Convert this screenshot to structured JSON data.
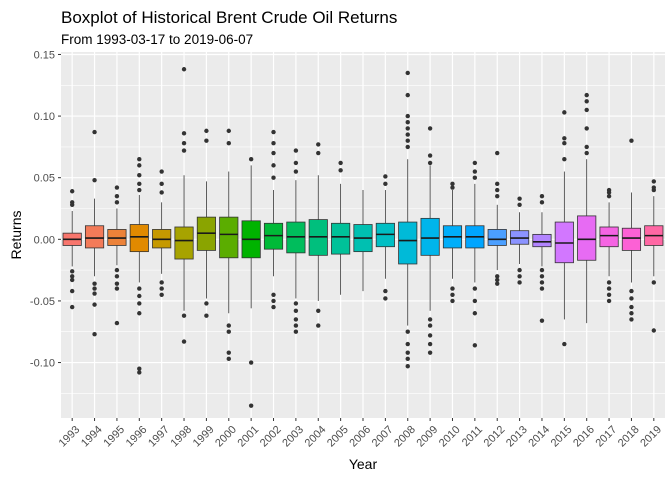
{
  "chart_data": {
    "type": "boxplot",
    "title": "Boxplot of Historical Brent Crude Oil Returns",
    "subtitle": "From 1993-03-17 to 2019-06-07",
    "xlabel": "Year",
    "ylabel": "Returns",
    "ylim": [
      -0.145,
      0.152
    ],
    "yticks": [
      -0.1,
      -0.05,
      0.0,
      0.05,
      0.1,
      0.15
    ],
    "ytick_labels": [
      "-0.10",
      "-0.05",
      "0.00",
      "0.05",
      "0.10",
      "0.15"
    ],
    "grid": true,
    "legend": "none",
    "categories": [
      "1993",
      "1994",
      "1995",
      "1996",
      "1997",
      "1998",
      "1999",
      "2000",
      "2001",
      "2002",
      "2003",
      "2004",
      "2005",
      "2006",
      "2007",
      "2008",
      "2009",
      "2010",
      "2011",
      "2012",
      "2013",
      "2014",
      "2015",
      "2016",
      "2017",
      "2018",
      "2019"
    ],
    "boxes": [
      {
        "q1": -0.005,
        "median": 0.0,
        "q3": 0.005,
        "whisker_low": -0.022,
        "whisker_high": 0.023,
        "outliers": [
          0.039,
          0.03,
          0.028,
          -0.026,
          -0.03,
          -0.033,
          -0.042,
          -0.055
        ],
        "color": "#F8766D"
      },
      {
        "q1": -0.007,
        "median": 0.001,
        "q3": 0.011,
        "whisker_low": -0.03,
        "whisker_high": 0.033,
        "outliers": [
          0.087,
          0.048,
          -0.036,
          -0.04,
          -0.044,
          -0.053,
          -0.077
        ],
        "color": "#F37B59"
      },
      {
        "q1": -0.005,
        "median": 0.001,
        "q3": 0.008,
        "whisker_low": -0.021,
        "whisker_high": 0.025,
        "outliers": [
          0.042,
          0.035,
          0.03,
          -0.025,
          -0.03,
          -0.036,
          -0.04,
          -0.068
        ],
        "color": "#EC8239"
      },
      {
        "q1": -0.01,
        "median": 0.002,
        "q3": 0.012,
        "whisker_low": -0.035,
        "whisker_high": 0.036,
        "outliers": [
          0.065,
          0.06,
          0.052,
          0.045,
          0.04,
          -0.04,
          -0.046,
          -0.052,
          -0.06,
          -0.105,
          -0.108
        ],
        "color": "#E18A00"
      },
      {
        "q1": -0.007,
        "median": 0.0,
        "q3": 0.008,
        "whisker_low": -0.028,
        "whisker_high": 0.03,
        "outliers": [
          0.055,
          0.045,
          0.038,
          -0.035,
          -0.04,
          -0.045
        ],
        "color": "#C59900"
      },
      {
        "q1": -0.016,
        "median": -0.001,
        "q3": 0.01,
        "whisker_low": -0.058,
        "whisker_high": 0.052,
        "outliers": [
          0.138,
          0.086,
          0.078,
          0.072,
          -0.062,
          -0.083
        ],
        "color": "#A7A300"
      },
      {
        "q1": -0.009,
        "median": 0.005,
        "q3": 0.018,
        "whisker_low": -0.048,
        "whisker_high": 0.047,
        "outliers": [
          0.088,
          0.08,
          -0.052,
          -0.062
        ],
        "color": "#8AA400"
      },
      {
        "q1": -0.015,
        "median": 0.004,
        "q3": 0.018,
        "whisker_low": -0.06,
        "whisker_high": 0.055,
        "outliers": [
          0.088,
          0.078,
          -0.07,
          -0.075,
          -0.092,
          -0.097
        ],
        "color": "#5BAD00"
      },
      {
        "q1": -0.015,
        "median": 0.0,
        "q3": 0.015,
        "whisker_low": -0.056,
        "whisker_high": 0.06,
        "outliers": [
          0.065,
          -0.1,
          -0.135
        ],
        "color": "#00B300"
      },
      {
        "q1": -0.008,
        "median": 0.003,
        "q3": 0.013,
        "whisker_low": -0.03,
        "whisker_high": 0.04,
        "outliers": [
          0.087,
          0.078,
          0.07,
          0.06,
          0.05,
          -0.045,
          -0.05,
          -0.055
        ],
        "color": "#00BA38"
      },
      {
        "q1": -0.011,
        "median": 0.002,
        "q3": 0.014,
        "whisker_low": -0.048,
        "whisker_high": 0.048,
        "outliers": [
          0.072,
          0.062,
          0.055,
          -0.052,
          -0.058,
          -0.065,
          -0.07,
          -0.075
        ],
        "color": "#00BD5C"
      },
      {
        "q1": -0.013,
        "median": 0.002,
        "q3": 0.016,
        "whisker_low": -0.05,
        "whisker_high": 0.052,
        "outliers": [
          0.077,
          0.07,
          -0.058,
          -0.07
        ],
        "color": "#00BF7D"
      },
      {
        "q1": -0.012,
        "median": 0.002,
        "q3": 0.013,
        "whisker_low": -0.045,
        "whisker_high": 0.045,
        "outliers": [
          0.062,
          0.056
        ],
        "color": "#00C199"
      },
      {
        "q1": -0.01,
        "median": 0.001,
        "q3": 0.012,
        "whisker_low": -0.042,
        "whisker_high": 0.04,
        "outliers": [],
        "color": "#00C0B1"
      },
      {
        "q1": -0.006,
        "median": 0.004,
        "q3": 0.013,
        "whisker_low": -0.032,
        "whisker_high": 0.04,
        "outliers": [
          0.051,
          0.045,
          -0.042,
          -0.048
        ],
        "color": "#00BFC4"
      },
      {
        "q1": -0.02,
        "median": -0.001,
        "q3": 0.014,
        "whisker_low": -0.07,
        "whisker_high": 0.065,
        "outliers": [
          0.135,
          0.117,
          0.1,
          0.095,
          0.09,
          0.085,
          0.08,
          0.075,
          -0.075,
          -0.085,
          -0.092,
          -0.097,
          -0.103
        ],
        "color": "#00BAD8"
      },
      {
        "q1": -0.013,
        "median": 0.001,
        "q3": 0.017,
        "whisker_low": -0.058,
        "whisker_high": 0.06,
        "outliers": [
          0.09,
          0.068,
          0.062,
          -0.065,
          -0.07,
          -0.078,
          -0.085,
          -0.092
        ],
        "color": "#00B5EB"
      },
      {
        "q1": -0.007,
        "median": 0.002,
        "q3": 0.011,
        "whisker_low": -0.032,
        "whisker_high": 0.04,
        "outliers": [
          0.045,
          0.042,
          -0.04,
          -0.045,
          -0.05
        ],
        "color": "#00AEFA"
      },
      {
        "q1": -0.007,
        "median": 0.002,
        "q3": 0.011,
        "whisker_low": -0.035,
        "whisker_high": 0.045,
        "outliers": [
          0.062,
          0.055,
          0.05,
          -0.04,
          -0.05,
          -0.06,
          -0.086
        ],
        "color": "#00A5FF"
      },
      {
        "q1": -0.005,
        "median": 0.0,
        "q3": 0.008,
        "whisker_low": -0.025,
        "whisker_high": 0.028,
        "outliers": [
          0.07,
          0.045,
          0.04,
          0.035,
          -0.03,
          -0.033,
          -0.036
        ],
        "color": "#4B9FFF"
      },
      {
        "q1": -0.004,
        "median": 0.001,
        "q3": 0.007,
        "whisker_low": -0.02,
        "whisker_high": 0.022,
        "outliers": [
          0.033,
          0.028,
          -0.025,
          -0.03,
          -0.035
        ],
        "color": "#8B93FF"
      },
      {
        "q1": -0.006,
        "median": -0.002,
        "q3": 0.004,
        "whisker_low": -0.022,
        "whisker_high": 0.022,
        "outliers": [
          0.035,
          0.03,
          -0.025,
          -0.03,
          -0.035,
          -0.04,
          -0.066
        ],
        "color": "#B284FF"
      },
      {
        "q1": -0.019,
        "median": -0.003,
        "q3": 0.014,
        "whisker_low": -0.065,
        "whisker_high": 0.055,
        "outliers": [
          0.103,
          0.082,
          0.078,
          0.065,
          -0.085
        ],
        "color": "#D277FF"
      },
      {
        "q1": -0.017,
        "median": 0.0,
        "q3": 0.019,
        "whisker_low": -0.068,
        "whisker_high": 0.065,
        "outliers": [
          0.117,
          0.112,
          0.105,
          0.09,
          0.075,
          0.07
        ],
        "color": "#E76BF3"
      },
      {
        "q1": -0.006,
        "median": 0.003,
        "q3": 0.01,
        "whisker_low": -0.03,
        "whisker_high": 0.03,
        "outliers": [
          0.04,
          0.038,
          0.035,
          -0.035,
          -0.04,
          -0.045,
          -0.05
        ],
        "color": "#F564E3"
      },
      {
        "q1": -0.009,
        "median": 0.001,
        "q3": 0.009,
        "whisker_low": -0.035,
        "whisker_high": 0.038,
        "outliers": [
          0.08,
          -0.042,
          -0.048,
          -0.055,
          -0.06,
          -0.065
        ],
        "color": "#FC61D5"
      },
      {
        "q1": -0.005,
        "median": 0.003,
        "q3": 0.011,
        "whisker_low": -0.03,
        "whisker_high": 0.035,
        "outliers": [
          0.047,
          0.042,
          0.04,
          -0.035,
          -0.074
        ],
        "color": "#FF67A4"
      }
    ]
  }
}
